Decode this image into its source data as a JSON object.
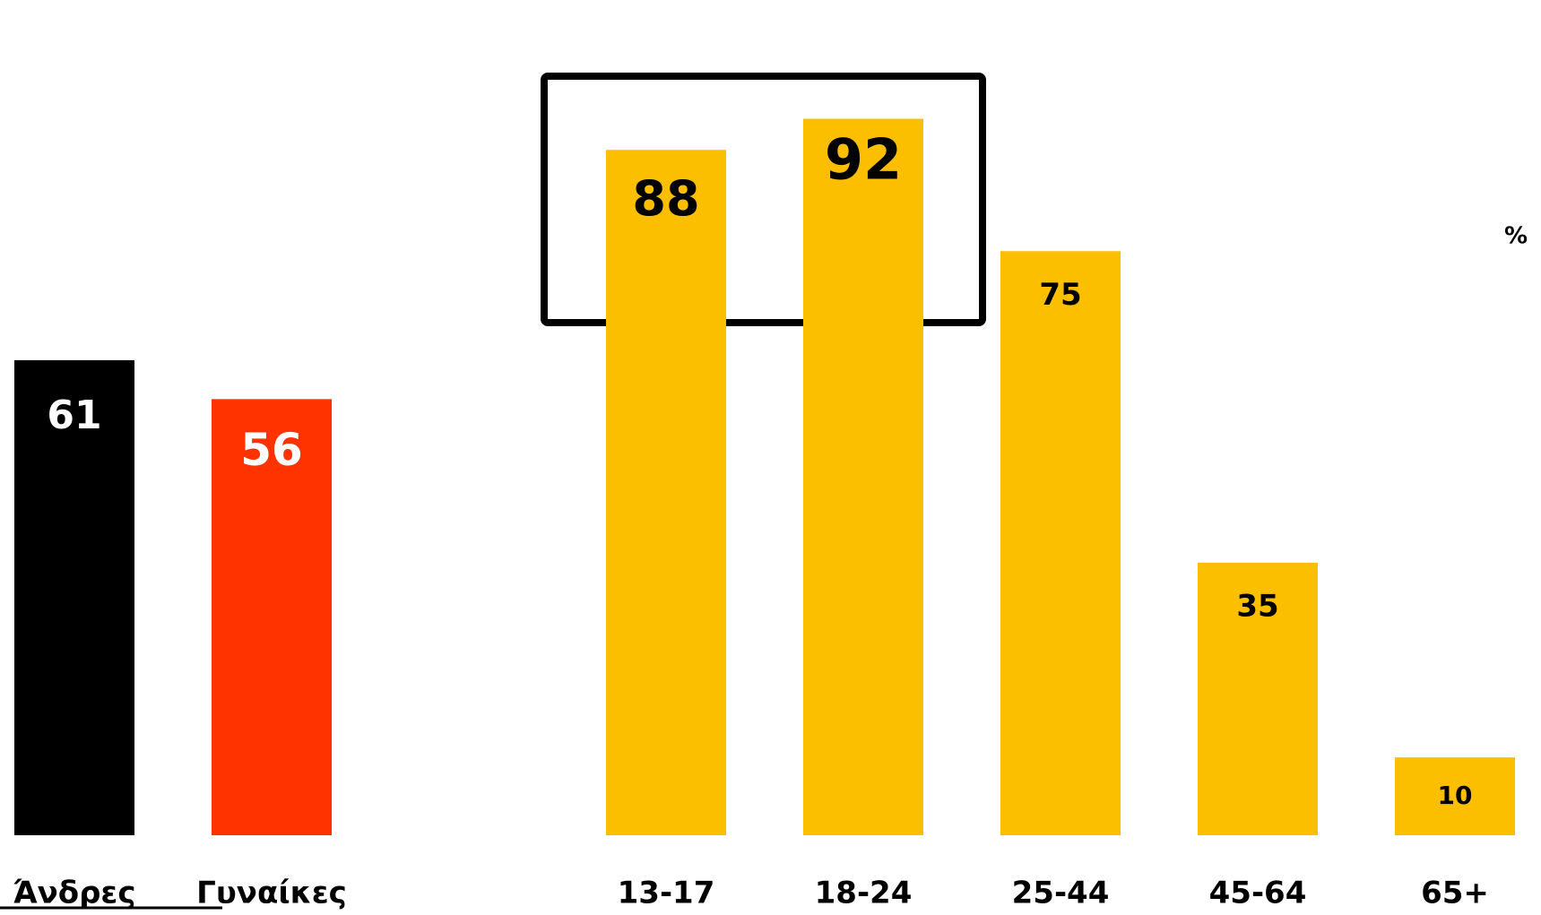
{
  "chart_data": {
    "type": "bar",
    "categories": [
      "Άνδρες",
      "Γυναίκες",
      "13-17",
      "18-24",
      "25-44",
      "45-64",
      "65+"
    ],
    "values": [
      61,
      56,
      88,
      92,
      75,
      35,
      10
    ],
    "colors": [
      "#000000",
      "#ff3300",
      "#fbbf00",
      "#fbbf00",
      "#fbbf00",
      "#fbbf00",
      "#fbbf00"
    ],
    "unit": "%",
    "ylim": [
      0,
      100
    ]
  }
}
